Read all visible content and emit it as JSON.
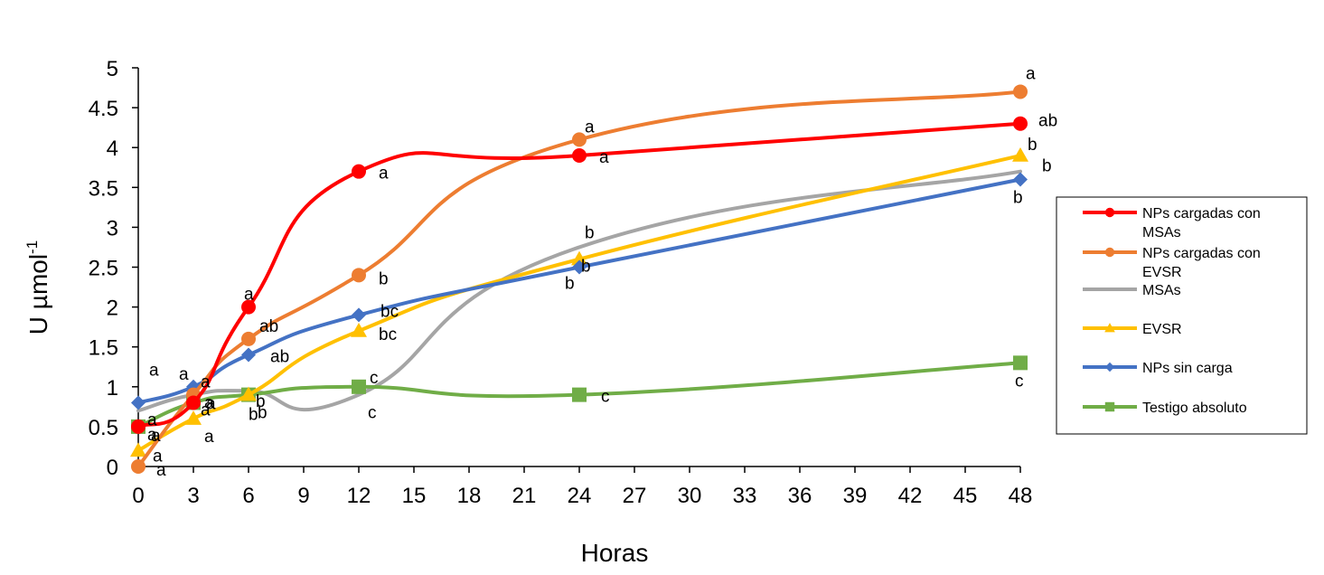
{
  "chart_data": {
    "type": "line",
    "xlabel": "Horas",
    "ylabel": "U µmol",
    "ylabel_sup": "-1",
    "xlim": [
      0,
      48
    ],
    "ylim": [
      0,
      5
    ],
    "xticks": [
      0,
      3,
      6,
      9,
      12,
      15,
      18,
      21,
      24,
      27,
      30,
      33,
      36,
      39,
      42,
      45,
      48
    ],
    "yticks": [
      "0",
      "0.5",
      "1",
      "1.5",
      "2",
      "2.5",
      "3",
      "3.5",
      "4",
      "4.5",
      "5"
    ],
    "grid": false,
    "legend_position": "right",
    "x": [
      0,
      3,
      6,
      12,
      24,
      48
    ],
    "series": [
      {
        "name": "NPs cargadas con MSAs",
        "color": "#ff0000",
        "marker": "circle",
        "values": [
          0.5,
          0.8,
          2.0,
          3.7,
          3.9,
          4.3
        ],
        "letters": [
          "a",
          "a",
          "a",
          "a",
          "a",
          "ab"
        ]
      },
      {
        "name": "NPs cargadas con EVSR",
        "color": "#ed7d31",
        "marker": "circle",
        "values": [
          0.0,
          0.9,
          1.6,
          2.4,
          4.1,
          4.7
        ],
        "letters": [
          "a",
          "a",
          "ab",
          "b",
          "a",
          "a"
        ]
      },
      {
        "name": "MSAs",
        "color": "#a5a5a5",
        "marker": "none",
        "values": [
          0.7,
          0.9,
          0.95,
          0.9,
          2.75,
          3.7
        ],
        "letters": [
          "a",
          "a",
          "b",
          "c",
          "b",
          "b"
        ]
      },
      {
        "name": "EVSR",
        "color": "#ffc000",
        "marker": "triangle",
        "values": [
          0.2,
          0.6,
          0.9,
          1.7,
          2.6,
          3.9
        ],
        "letters": [
          "a",
          "a",
          "b",
          "bc",
          "b",
          "b"
        ]
      },
      {
        "name": "NPs sin carga",
        "color": "#4472c4",
        "marker": "diamond",
        "values": [
          0.8,
          1.0,
          1.4,
          1.9,
          2.5,
          3.6
        ],
        "letters": [
          "a",
          "a",
          "ab",
          "bc",
          "b",
          "b"
        ]
      },
      {
        "name": "Testigo absoluto",
        "color": "#70ad47",
        "marker": "square",
        "values": [
          0.5,
          0.8,
          0.9,
          1.0,
          0.9,
          1.3
        ],
        "letters": [
          "a",
          "a",
          "b",
          "c",
          "c",
          "c"
        ]
      }
    ],
    "legend_lines": [
      [
        "NPs cargadas con",
        "MSAs"
      ],
      [
        "NPs cargadas con",
        "EVSR"
      ],
      [
        "MSAs"
      ],
      [
        "EVSR"
      ],
      [
        "NPs sin carga"
      ],
      [
        "Testigo absoluto"
      ]
    ]
  }
}
